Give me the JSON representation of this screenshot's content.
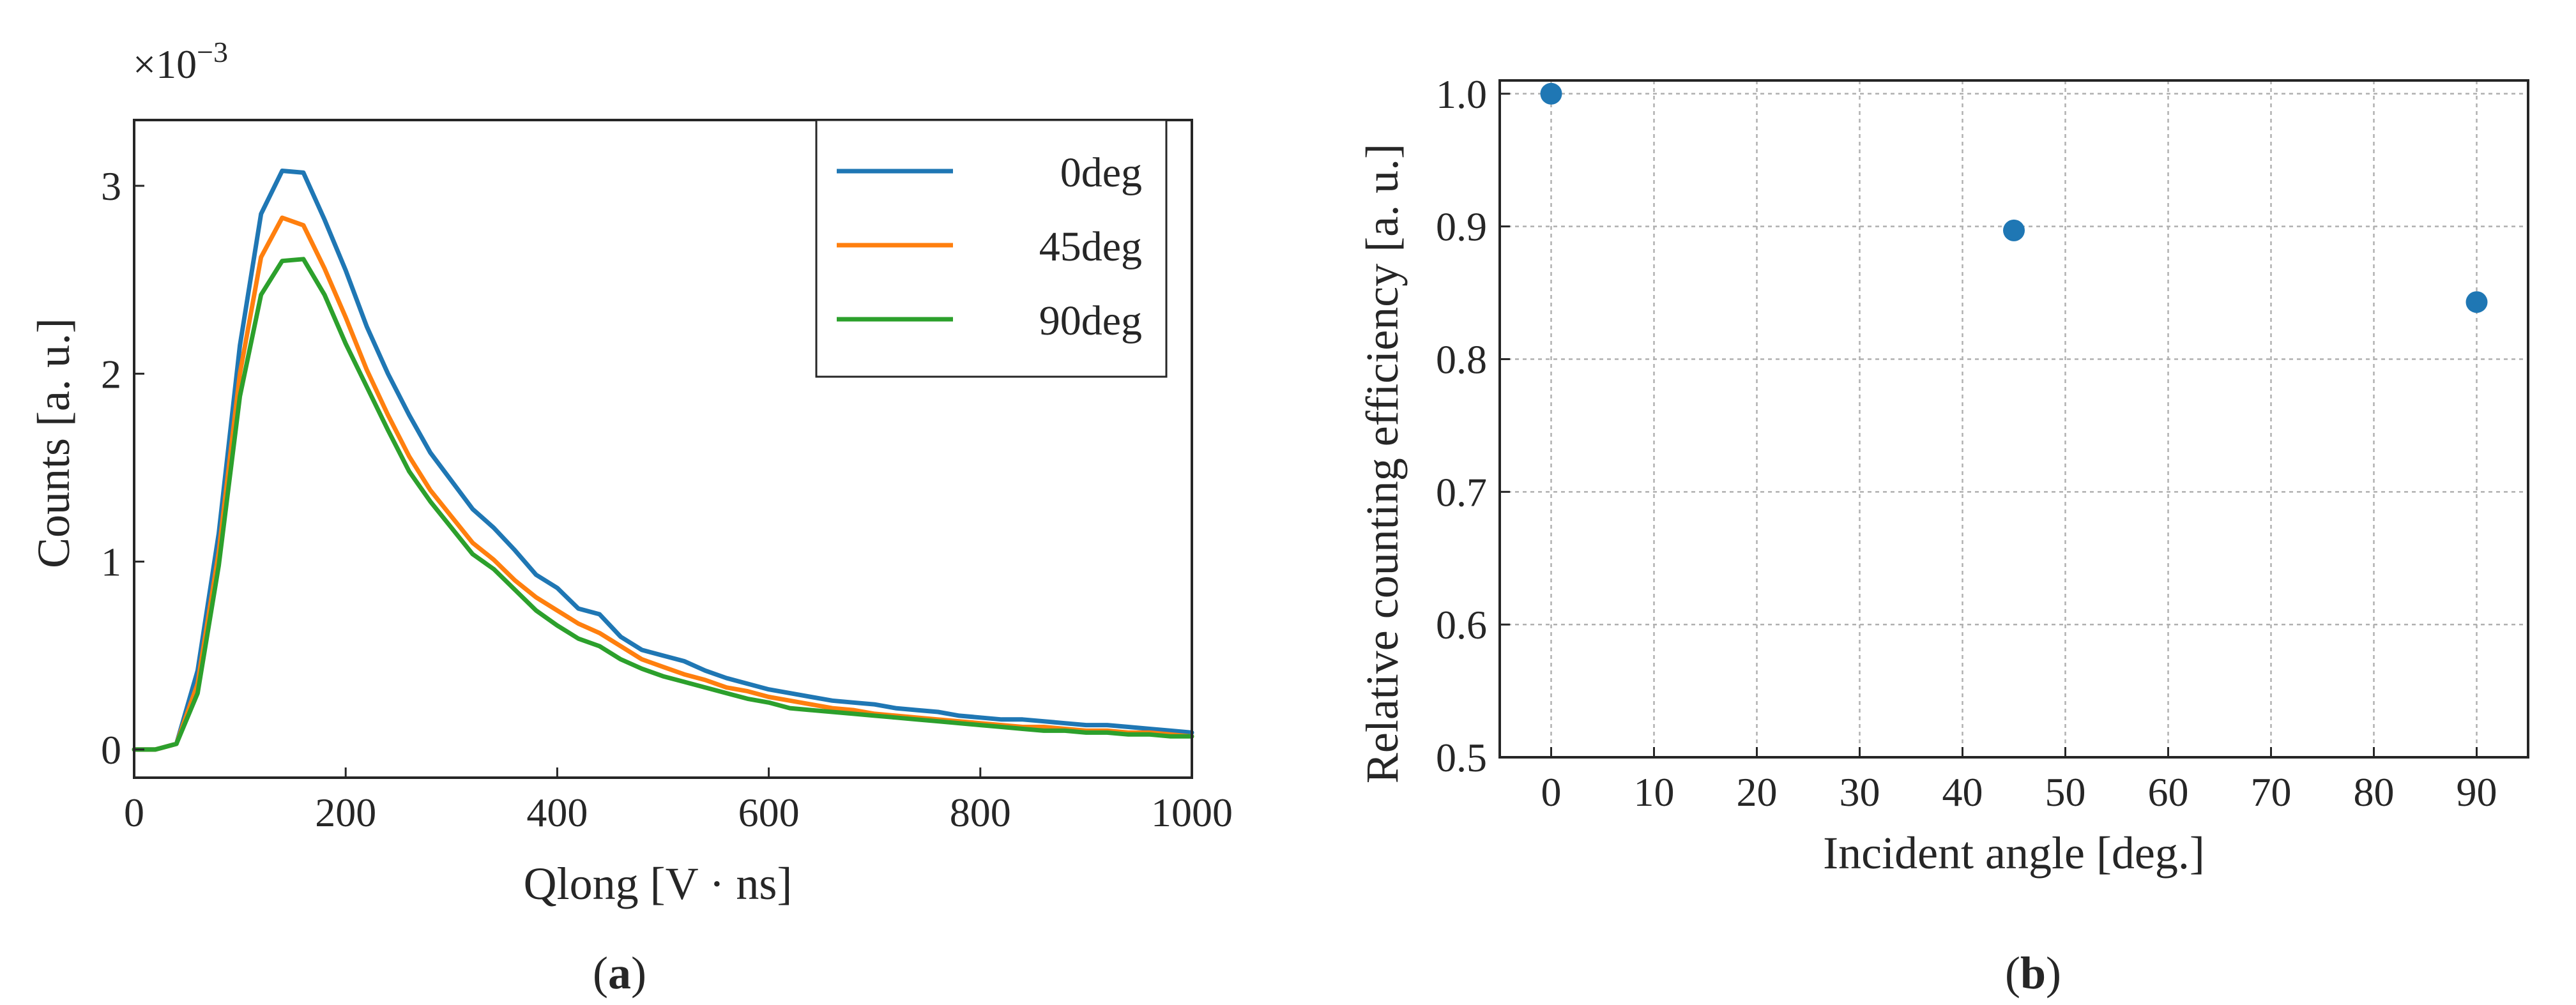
{
  "chart_data": [
    {
      "type": "line",
      "panel_label": "a",
      "title": "",
      "xlabel": "Qlong [V · ns]",
      "ylabel": "Counts [a. u.]",
      "y_multiplier": "×10",
      "y_multiplier_exp": "−3",
      "xlim": [
        0,
        1000
      ],
      "ylim": [
        -0.15,
        3.35
      ],
      "xticks": [
        0,
        200,
        400,
        600,
        800,
        1000
      ],
      "yticks": [
        0,
        1,
        2,
        3
      ],
      "legend_position": "upper-right",
      "grid": false,
      "x": [
        0,
        20,
        40,
        60,
        80,
        100,
        120,
        140,
        160,
        180,
        200,
        220,
        240,
        260,
        280,
        300,
        320,
        340,
        360,
        380,
        400,
        420,
        440,
        460,
        480,
        500,
        520,
        540,
        560,
        580,
        600,
        620,
        640,
        660,
        680,
        700,
        720,
        740,
        760,
        780,
        800,
        820,
        840,
        860,
        880,
        900,
        920,
        940,
        960,
        980,
        1000
      ],
      "series": [
        {
          "name": "0deg",
          "color": "#1f77b4",
          "values": [
            0,
            0,
            0.03,
            0.42,
            1.15,
            2.15,
            2.85,
            3.08,
            3.07,
            2.82,
            2.55,
            2.25,
            2.0,
            1.78,
            1.58,
            1.43,
            1.28,
            1.18,
            1.06,
            0.93,
            0.86,
            0.75,
            0.72,
            0.6,
            0.53,
            0.5,
            0.47,
            0.42,
            0.38,
            0.35,
            0.32,
            0.3,
            0.28,
            0.26,
            0.25,
            0.24,
            0.22,
            0.21,
            0.2,
            0.18,
            0.17,
            0.16,
            0.16,
            0.15,
            0.14,
            0.13,
            0.13,
            0.12,
            0.11,
            0.1,
            0.09
          ]
        },
        {
          "name": "45deg",
          "color": "#ff7f0e",
          "values": [
            0,
            0,
            0.03,
            0.35,
            1.05,
            2.0,
            2.62,
            2.83,
            2.79,
            2.56,
            2.3,
            2.02,
            1.78,
            1.56,
            1.38,
            1.24,
            1.1,
            1.01,
            0.9,
            0.81,
            0.74,
            0.67,
            0.62,
            0.55,
            0.48,
            0.44,
            0.4,
            0.37,
            0.33,
            0.31,
            0.28,
            0.26,
            0.24,
            0.22,
            0.21,
            0.19,
            0.18,
            0.17,
            0.16,
            0.15,
            0.14,
            0.13,
            0.12,
            0.12,
            0.11,
            0.1,
            0.1,
            0.09,
            0.09,
            0.08,
            0.07
          ]
        },
        {
          "name": "90deg",
          "color": "#2ca02c",
          "values": [
            0,
            0,
            0.03,
            0.3,
            0.98,
            1.88,
            2.42,
            2.6,
            2.61,
            2.42,
            2.16,
            1.93,
            1.7,
            1.48,
            1.32,
            1.18,
            1.04,
            0.96,
            0.85,
            0.74,
            0.66,
            0.59,
            0.55,
            0.48,
            0.43,
            0.39,
            0.36,
            0.33,
            0.3,
            0.27,
            0.25,
            0.22,
            0.21,
            0.2,
            0.19,
            0.18,
            0.17,
            0.16,
            0.15,
            0.14,
            0.13,
            0.12,
            0.11,
            0.1,
            0.1,
            0.09,
            0.09,
            0.08,
            0.08,
            0.07,
            0.07
          ]
        }
      ]
    },
    {
      "type": "scatter",
      "panel_label": "b",
      "title": "",
      "xlabel": "Incident angle [deg.]",
      "ylabel": "Relative counting efficiency [a. u.]",
      "xlim": [
        -5,
        95
      ],
      "ylim": [
        0.5,
        1.01
      ],
      "xticks": [
        0,
        10,
        20,
        30,
        40,
        50,
        60,
        70,
        80,
        90
      ],
      "yticks": [
        "0.5",
        "0.6",
        "0.7",
        "0.8",
        "0.9",
        "1.0"
      ],
      "grid": true,
      "series": [
        {
          "name": "efficiency",
          "color": "#1f77b4",
          "points": [
            {
              "x": 0,
              "y": 1.0,
              "xerr": 0.6,
              "yerr": 0.003
            },
            {
              "x": 45,
              "y": 0.897,
              "xerr": 0.6,
              "yerr": 0.003
            },
            {
              "x": 90,
              "y": 0.843,
              "xerr": 0.6,
              "yerr": 0.003
            }
          ]
        }
      ]
    }
  ]
}
